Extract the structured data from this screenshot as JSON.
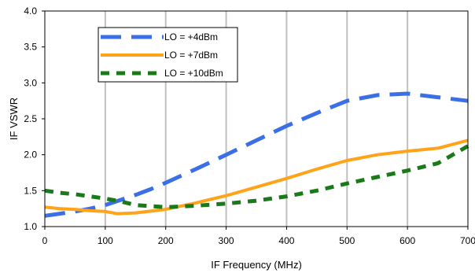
{
  "chart_data": {
    "type": "line",
    "xlabel": "IF Frequency (MHz)",
    "ylabel": "IF VSWR",
    "xlim": [
      0,
      700
    ],
    "ylim": [
      1.0,
      4.0
    ],
    "x_ticks": [
      0,
      100,
      200,
      300,
      400,
      500,
      600,
      700
    ],
    "x_tick_labels": [
      "0",
      "100",
      "200",
      "300",
      "400",
      "500",
      "600",
      "700"
    ],
    "y_ticks": [
      1.0,
      1.5,
      2.0,
      2.5,
      3.0,
      3.5,
      4.0
    ],
    "y_tick_labels": [
      "1.0",
      "1.5",
      "2.0",
      "2.5",
      "3.0",
      "3.5",
      "4.0"
    ],
    "grid": "vertical",
    "legend_position": "top-left",
    "series": [
      {
        "name": "LO = +4dBm",
        "color": "#3b6fe8",
        "style": "long-dash",
        "x": [
          0,
          25,
          50,
          75,
          100,
          125,
          150,
          175,
          200,
          250,
          300,
          350,
          400,
          450,
          500,
          550,
          600,
          650,
          700
        ],
        "y": [
          1.15,
          1.18,
          1.21,
          1.25,
          1.3,
          1.37,
          1.44,
          1.52,
          1.61,
          1.8,
          2.0,
          2.2,
          2.4,
          2.58,
          2.75,
          2.83,
          2.85,
          2.8,
          2.75
        ]
      },
      {
        "name": "LO = +7dBm",
        "color": "#ffa31a",
        "style": "solid",
        "x": [
          0,
          25,
          50,
          75,
          100,
          120,
          150,
          200,
          250,
          300,
          350,
          400,
          450,
          500,
          550,
          600,
          650,
          700
        ],
        "y": [
          1.27,
          1.25,
          1.24,
          1.22,
          1.21,
          1.18,
          1.19,
          1.24,
          1.33,
          1.43,
          1.55,
          1.67,
          1.8,
          1.92,
          2.0,
          2.05,
          2.09,
          2.2
        ]
      },
      {
        "name": "LO = +10dBm",
        "color": "#1a7a1a",
        "style": "short-dash",
        "x": [
          0,
          25,
          50,
          75,
          100,
          125,
          150,
          200,
          250,
          300,
          350,
          400,
          450,
          500,
          550,
          600,
          650,
          700
        ],
        "y": [
          1.5,
          1.47,
          1.45,
          1.42,
          1.39,
          1.35,
          1.3,
          1.27,
          1.29,
          1.32,
          1.36,
          1.42,
          1.5,
          1.6,
          1.69,
          1.78,
          1.88,
          2.12
        ]
      }
    ]
  }
}
